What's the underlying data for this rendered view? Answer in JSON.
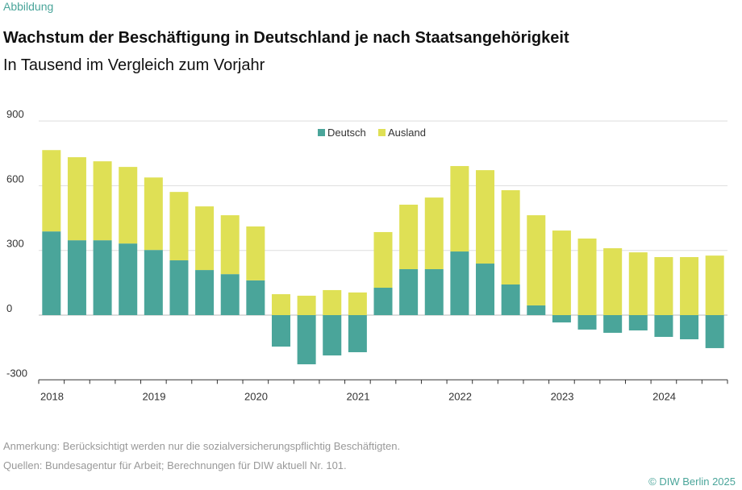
{
  "header": {
    "label": "Abbildung",
    "title": "Wachstum der Beschäftigung in Deutschland je nach Staatsangehörigkeit",
    "subtitle": "In Tausend im Vergleich zum Vorjahr"
  },
  "footer": {
    "note": "Anmerkung: Berücksichtigt werden nur die sozialversicherungspflichtig Beschäftigten.",
    "source": "Quellen: Bundesagentur für Arbeit; Berechnungen für DIW aktuell Nr. 101.",
    "copyright": "© DIW Berlin 2025"
  },
  "chart_data": {
    "type": "bar",
    "stacked": true,
    "title": "Wachstum der Beschäftigung in Deutschland je nach Staatsangehörigkeit",
    "ylabel": "",
    "xlabel": "",
    "ylim": [
      -300,
      900
    ],
    "yticks": [
      -300,
      0,
      300,
      600,
      900
    ],
    "legend_position": "top-center",
    "grid": true,
    "year_labels": [
      "2018",
      "2019",
      "2020",
      "2021",
      "2022",
      "2023",
      "2024"
    ],
    "categories": [
      "2018Q1",
      "2018Q2",
      "2018Q3",
      "2018Q4",
      "2019Q1",
      "2019Q2",
      "2019Q3",
      "2019Q4",
      "2020Q1",
      "2020Q2",
      "2020Q3",
      "2020Q4",
      "2021Q1",
      "2021Q2",
      "2021Q3",
      "2021Q4",
      "2022Q1",
      "2022Q2",
      "2022Q3",
      "2022Q4",
      "2023Q1",
      "2023Q2",
      "2023Q3",
      "2023Q4",
      "2024Q1",
      "2024Q2",
      "2024Q3"
    ],
    "series": [
      {
        "name": "Deutsch",
        "color": "#4aa59a",
        "values": [
          388,
          347,
          347,
          332,
          302,
          254,
          209,
          190,
          161,
          -146,
          -228,
          -187,
          -172,
          127,
          213,
          213,
          295,
          239,
          142,
          45,
          -34,
          -67,
          -82,
          -71,
          -101,
          -112,
          -153
        ]
      },
      {
        "name": "Ausland",
        "color": "#dfe055",
        "values": [
          377,
          385,
          366,
          355,
          336,
          317,
          295,
          273,
          250,
          97,
          90,
          116,
          105,
          258,
          299,
          332,
          396,
          433,
          437,
          418,
          392,
          355,
          310,
          291,
          269,
          269,
          276
        ]
      }
    ]
  }
}
